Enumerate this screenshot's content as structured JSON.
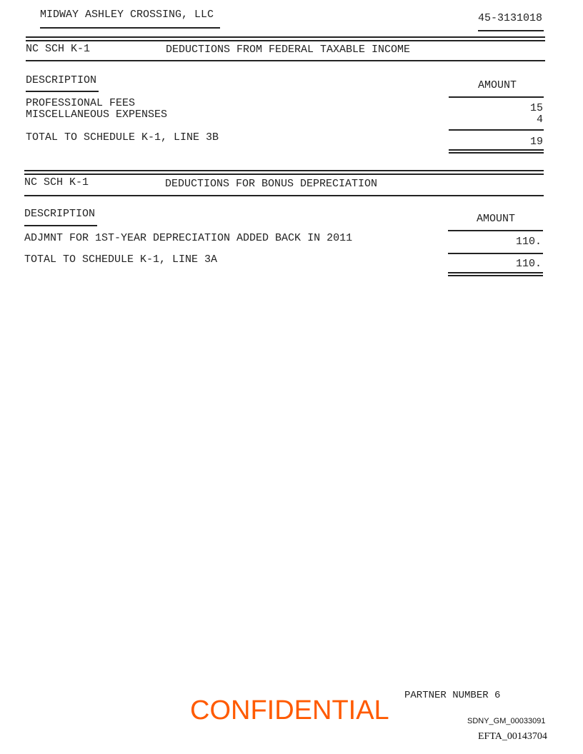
{
  "header": {
    "entity": "MIDWAY ASHLEY CROSSING, LLC",
    "ein": "45-3131018"
  },
  "sections": [
    {
      "form": "NC SCH K-1",
      "title": "DEDUCTIONS FROM FEDERAL TAXABLE INCOME",
      "desc_header": "DESCRIPTION",
      "amount_header": "AMOUNT",
      "rows": [
        {
          "description": "PROFESSIONAL FEES",
          "amount": "15"
        },
        {
          "description": "MISCELLANEOUS EXPENSES",
          "amount": "4"
        }
      ],
      "total": {
        "description": "TOTAL TO SCHEDULE K-1, LINE 3B",
        "amount": "19"
      }
    },
    {
      "form": "NC SCH K-1",
      "title": "DEDUCTIONS FOR BONUS DEPRECIATION",
      "desc_header": "DESCRIPTION",
      "amount_header": "AMOUNT",
      "rows": [
        {
          "description": "ADJMNT FOR 1ST-YEAR DEPRECIATION ADDED BACK IN 2011",
          "amount": "110."
        }
      ],
      "total": {
        "description": "TOTAL TO SCHEDULE K-1, LINE 3A",
        "amount": "110."
      }
    }
  ],
  "footer": {
    "partner": "PARTNER NUMBER 6",
    "confidential": "CONFIDENTIAL",
    "bates": "SDNY_GM_00033091",
    "efta": "EFTA_00143704",
    "confidential_color": "#ff5a00"
  }
}
